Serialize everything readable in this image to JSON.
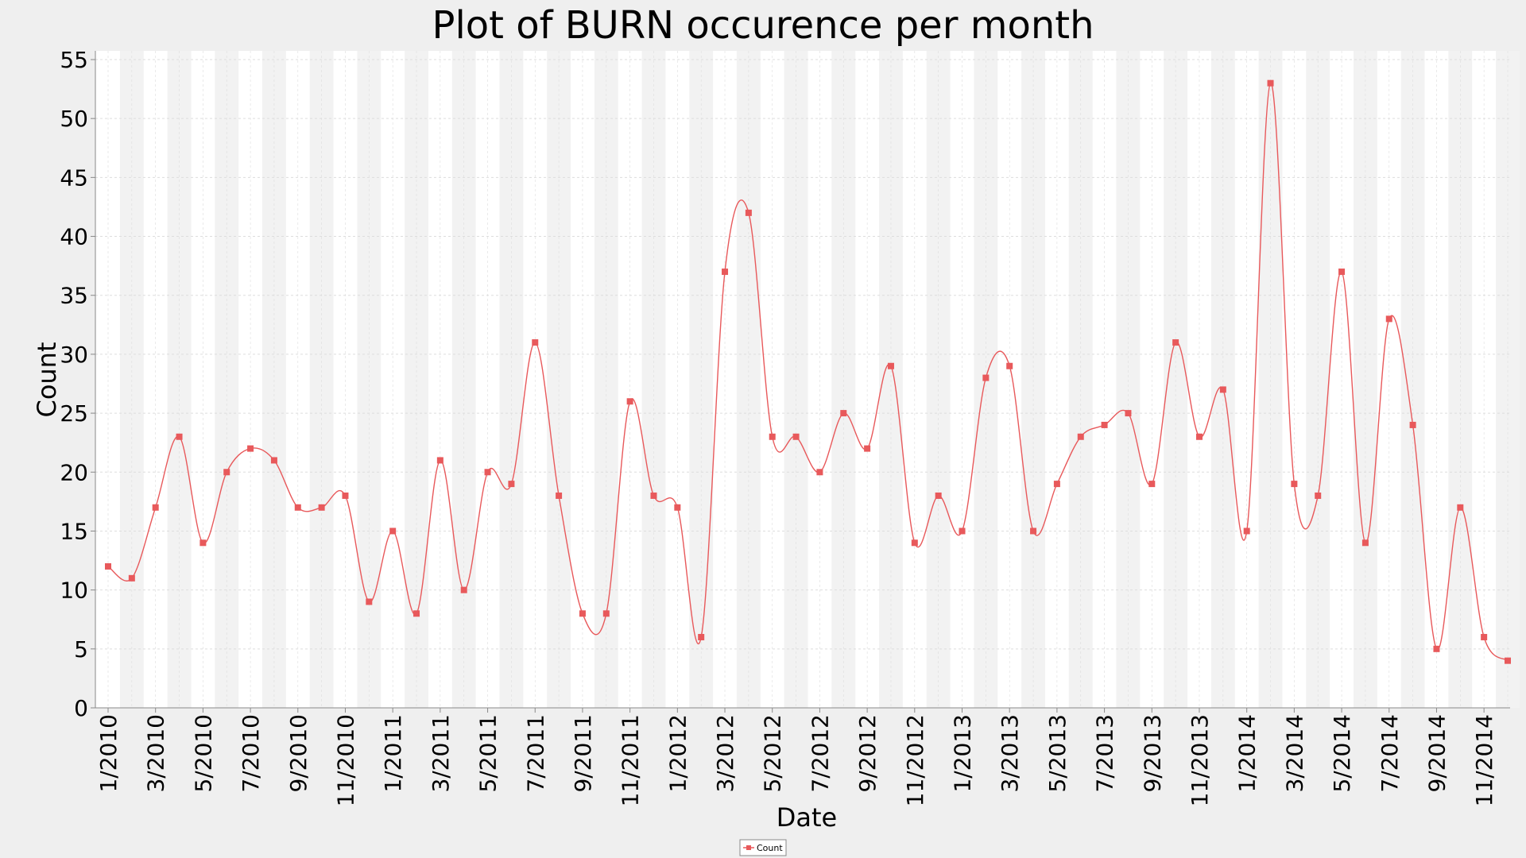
{
  "chart_data": {
    "type": "line",
    "title": "Plot of BURN occurence per month",
    "xlabel": "Date",
    "ylabel": "Count",
    "ylim": [
      0,
      55
    ],
    "yticks": [
      0,
      5,
      10,
      15,
      20,
      25,
      30,
      35,
      40,
      45,
      50,
      55
    ],
    "x_tick_labels": [
      "1/2010",
      "3/2010",
      "5/2010",
      "7/2010",
      "9/2010",
      "11/2010",
      "1/2011",
      "3/2011",
      "5/2011",
      "7/2011",
      "9/2011",
      "11/2011",
      "1/2012",
      "3/2012",
      "5/2012",
      "7/2012",
      "9/2012",
      "11/2012",
      "1/2013",
      "3/2013",
      "5/2013",
      "7/2013",
      "9/2013",
      "11/2013",
      "1/2014",
      "3/2014",
      "5/2014",
      "7/2014",
      "9/2014",
      "11/2014"
    ],
    "x": [
      "1/2010",
      "2/2010",
      "3/2010",
      "4/2010",
      "5/2010",
      "6/2010",
      "7/2010",
      "8/2010",
      "9/2010",
      "10/2010",
      "11/2010",
      "12/2010",
      "1/2011",
      "2/2011",
      "3/2011",
      "4/2011",
      "5/2011",
      "6/2011",
      "7/2011",
      "8/2011",
      "9/2011",
      "10/2011",
      "11/2011",
      "12/2011",
      "1/2012",
      "2/2012",
      "3/2012",
      "4/2012",
      "5/2012",
      "6/2012",
      "7/2012",
      "8/2012",
      "9/2012",
      "10/2012",
      "11/2012",
      "12/2012",
      "1/2013",
      "2/2013",
      "3/2013",
      "4/2013",
      "5/2013",
      "6/2013",
      "7/2013",
      "8/2013",
      "9/2013",
      "10/2013",
      "11/2013",
      "12/2013",
      "1/2014",
      "2/2014",
      "3/2014",
      "4/2014",
      "5/2014",
      "6/2014",
      "7/2014",
      "8/2014",
      "9/2014",
      "10/2014",
      "11/2014",
      "12/2014"
    ],
    "series": [
      {
        "name": "Count",
        "color": "#e8595b",
        "values": [
          12,
          11,
          17,
          23,
          14,
          20,
          22,
          21,
          17,
          17,
          18,
          9,
          15,
          8,
          21,
          10,
          20,
          19,
          31,
          18,
          8,
          8,
          26,
          18,
          17,
          6,
          37,
          42,
          23,
          23,
          20,
          25,
          22,
          29,
          14,
          18,
          15,
          28,
          29,
          15,
          19,
          23,
          24,
          25,
          19,
          31,
          23,
          27,
          15,
          53,
          19,
          18,
          37,
          14,
          33,
          24,
          5,
          17,
          6,
          4
        ]
      }
    ],
    "legend": {
      "placement": "bottom-center"
    },
    "grid": true,
    "background_stripes": true
  },
  "colors": {
    "page_background": "#efefef",
    "plot_background": "#ffffff",
    "stripe": "#f2f2f2",
    "grid": "#dddddd",
    "series": "#e8595b"
  }
}
